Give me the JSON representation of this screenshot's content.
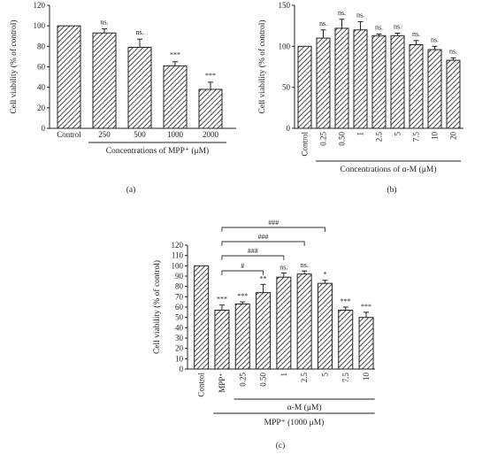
{
  "chart_data": [
    {
      "id": "a",
      "type": "bar",
      "panel_label": "(a)",
      "ylabel": "Cell viability (% of control)",
      "ylim": [
        0,
        120
      ],
      "yticks": [
        "0",
        "20",
        "40",
        "60",
        "80",
        "100",
        "120"
      ],
      "categories": [
        "Control",
        "250",
        "500",
        "1000",
        "2000"
      ],
      "values": [
        100,
        93,
        79,
        61,
        38
      ],
      "errors": [
        0,
        4,
        8,
        4,
        7
      ],
      "significance": [
        "",
        "ns.",
        "ns.",
        "***",
        "***"
      ],
      "groups": [
        {
          "label": "Concentrations of MPP⁺ (μM)",
          "from": 1,
          "to": 4
        }
      ]
    },
    {
      "id": "b",
      "type": "bar",
      "panel_label": "(b)",
      "ylabel": "Cell viability (% of control)",
      "ylim": [
        0,
        150
      ],
      "yticks": [
        "0",
        "50",
        "100",
        "150"
      ],
      "categories": [
        "Control",
        "0.25",
        "0.50",
        "1",
        "2.5",
        "5",
        "7.5",
        "10",
        "20"
      ],
      "values": [
        100,
        110,
        122,
        120,
        113,
        113,
        102,
        96,
        83
      ],
      "errors": [
        0,
        10,
        11,
        10,
        2,
        3,
        5,
        4,
        3
      ],
      "significance": [
        "",
        "ns.",
        "ns.",
        "ns.",
        "ns.",
        "ns.",
        "ns.",
        "ns.",
        "ns."
      ],
      "groups": [
        {
          "label": "Concentrations of α-M (μM)",
          "from": 1,
          "to": 8
        }
      ]
    },
    {
      "id": "c",
      "type": "bar",
      "panel_label": "(c)",
      "ylabel": "Cell viability (% of control)",
      "ylim": [
        0,
        120
      ],
      "yticks": [
        "0",
        "10",
        "20",
        "30",
        "40",
        "50",
        "60",
        "70",
        "80",
        "90",
        "100",
        "110",
        "120"
      ],
      "categories": [
        "Control",
        "MPP⁺",
        "0.25",
        "0.50",
        "1",
        "2.5",
        "5",
        "7.5",
        "10"
      ],
      "values": [
        100,
        57,
        63,
        74,
        89,
        92,
        83,
        57,
        50
      ],
      "errors": [
        0,
        5,
        2,
        8,
        4,
        3,
        3,
        3,
        5
      ],
      "significance": [
        "",
        "***",
        "***",
        "**",
        "ns.",
        "ns.",
        "*",
        "***",
        "***"
      ],
      "comparisons": [
        {
          "label": "#",
          "from": 1,
          "to": 3
        },
        {
          "label": "###",
          "from": 1,
          "to": 4
        },
        {
          "label": "###",
          "from": 1,
          "to": 5
        },
        {
          "label": "###",
          "from": 1,
          "to": 6
        }
      ],
      "groups": [
        {
          "label": "α-M (μM)",
          "from": 2,
          "to": 8
        },
        {
          "label": "MPP⁺ (1000 μM)",
          "from": 1,
          "to": 8
        }
      ]
    }
  ]
}
